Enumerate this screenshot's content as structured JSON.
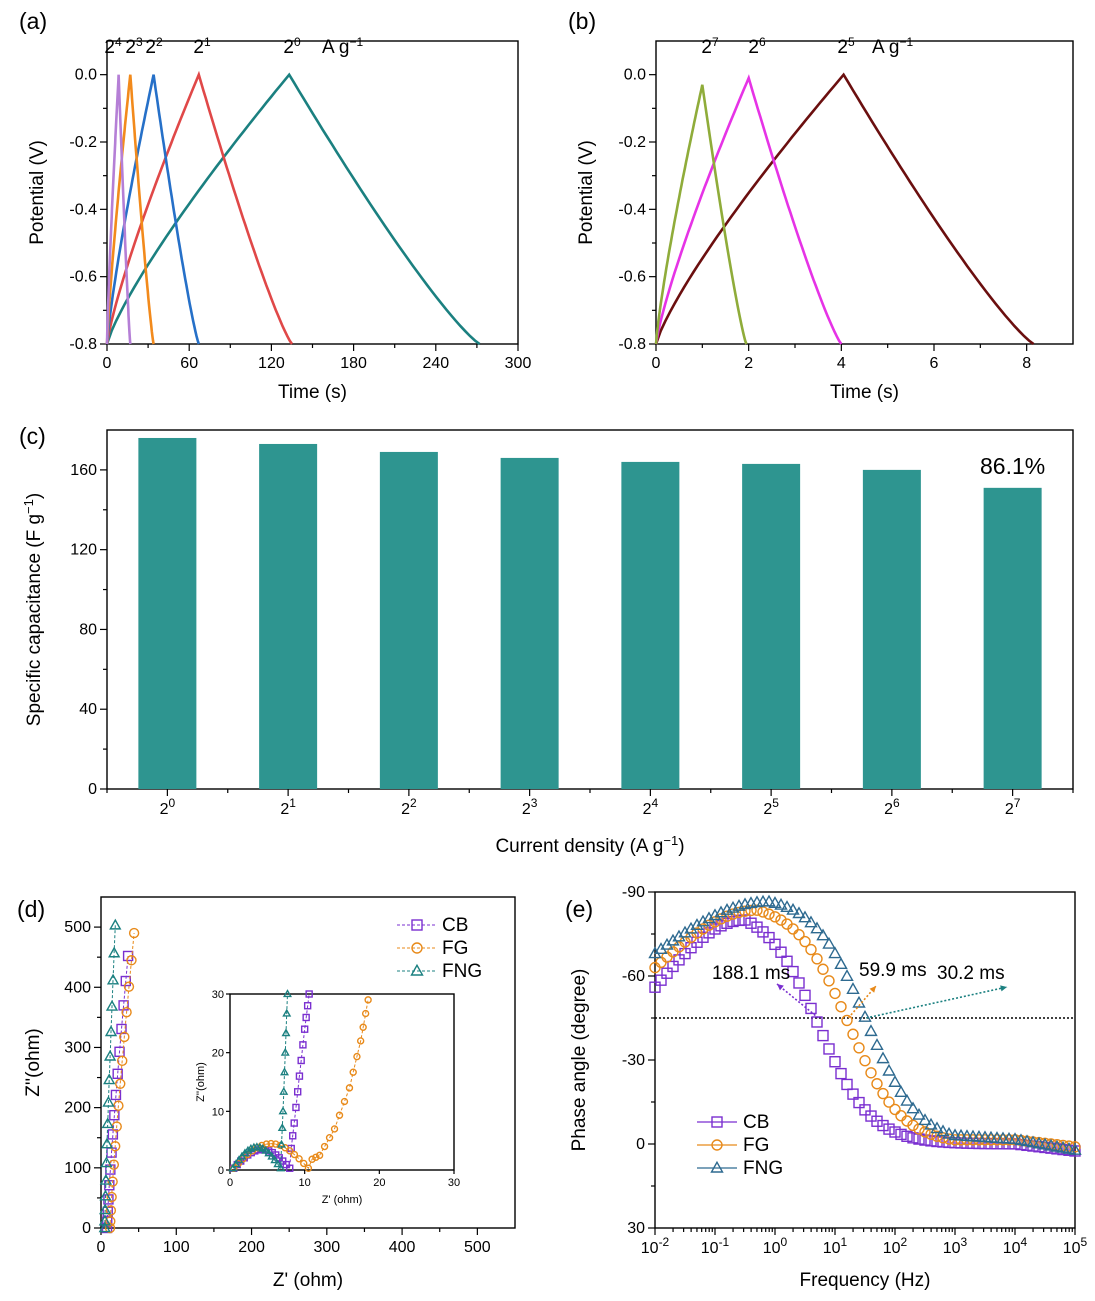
{
  "chart_data": [
    {
      "id": "a",
      "panel_label": "(a)",
      "type": "line",
      "xlabel": "Time (s)",
      "ylabel": "Potential (V)",
      "xlim": [
        0,
        300
      ],
      "ylim": [
        -0.8,
        0.1
      ],
      "xticks": [
        "0",
        "60",
        "120",
        "180",
        "240",
        "300"
      ],
      "yticks": [
        "0.0",
        "-0.2",
        "-0.4",
        "-0.6",
        "-0.8"
      ],
      "unit_label": "A g",
      "unit_sup": "−1",
      "series": [
        {
          "name": "2^0",
          "base": "2",
          "exp": "0",
          "color": "#1b8080",
          "peak_t": 133,
          "end_t": 272,
          "peak_v": 0.0
        },
        {
          "name": "2^1",
          "base": "2",
          "exp": "1",
          "color": "#e04848",
          "peak_t": 67,
          "end_t": 135,
          "peak_v": 0.0
        },
        {
          "name": "2^2",
          "base": "2",
          "exp": "2",
          "color": "#2670c8",
          "peak_t": 34,
          "end_t": 67,
          "peak_v": 0.0
        },
        {
          "name": "2^3",
          "base": "2",
          "exp": "3",
          "color": "#f28a1c",
          "peak_t": 17,
          "end_t": 34,
          "peak_v": 0.0
        },
        {
          "name": "2^4",
          "base": "2",
          "exp": "4",
          "color": "#b57fd6",
          "peak_t": 8.5,
          "end_t": 17,
          "peak_v": 0.0
        }
      ]
    },
    {
      "id": "b",
      "panel_label": "(b)",
      "type": "line",
      "xlabel": "Time (s)",
      "ylabel": "Potential (V)",
      "xlim": [
        0,
        9
      ],
      "ylim": [
        -0.8,
        0.1
      ],
      "xticks": [
        "0",
        "2",
        "4",
        "6",
        "8"
      ],
      "yticks": [
        "0.0",
        "-0.2",
        "-0.4",
        "-0.6",
        "-0.8"
      ],
      "unit_label": "A g",
      "unit_sup": "−1",
      "series": [
        {
          "name": "2^5",
          "base": "2",
          "exp": "5",
          "color": "#6b0f0f",
          "peak_t": 4.05,
          "end_t": 8.15,
          "peak_v": 0.0
        },
        {
          "name": "2^6",
          "base": "2",
          "exp": "6",
          "color": "#e633e6",
          "peak_t": 2.0,
          "end_t": 4.0,
          "peak_v": -0.01
        },
        {
          "name": "2^7",
          "base": "2",
          "exp": "7",
          "color": "#8fac3a",
          "peak_t": 1.0,
          "end_t": 1.95,
          "peak_v": -0.03
        }
      ]
    },
    {
      "id": "c",
      "panel_label": "(c)",
      "type": "bar",
      "xlabel": "Current density (A g",
      "xlabel_sup": "−1",
      "xlabel_end": ")",
      "ylabel": "Specific capacitance (F g",
      "ylabel_sup": "−1",
      "ylabel_end": ")",
      "ylim": [
        0,
        180
      ],
      "yticks": [
        "0",
        "40",
        "80",
        "120",
        "160"
      ],
      "bar_color": "#2e9590",
      "categories": [
        {
          "base": "2",
          "exp": "0"
        },
        {
          "base": "2",
          "exp": "1"
        },
        {
          "base": "2",
          "exp": "2"
        },
        {
          "base": "2",
          "exp": "3"
        },
        {
          "base": "2",
          "exp": "4"
        },
        {
          "base": "2",
          "exp": "5"
        },
        {
          "base": "2",
          "exp": "6"
        },
        {
          "base": "2",
          "exp": "7"
        }
      ],
      "values": [
        176,
        173,
        169,
        166,
        164,
        163,
        160,
        151
      ],
      "annotation": "86.1%",
      "annotation_color": "#e02020"
    },
    {
      "id": "d",
      "panel_label": "(d)",
      "type": "scatter",
      "xlabel": "Z' (ohm)",
      "ylabel": "Z''(ohm)",
      "xlim": [
        0,
        550
      ],
      "ylim": [
        0,
        550
      ],
      "xticks": [
        "0",
        "100",
        "200",
        "300",
        "400",
        "500"
      ],
      "yticks": [
        "0",
        "100",
        "200",
        "300",
        "400",
        "500"
      ],
      "legend": [
        {
          "name": "CB",
          "color": "#7a2fd0",
          "marker": "square"
        },
        {
          "name": "FG",
          "color": "#e88a1a",
          "marker": "circle"
        },
        {
          "name": "FNG",
          "color": "#1b8080",
          "marker": "triangle"
        }
      ],
      "inset": {
        "xlabel": "Z' (ohm)",
        "ylabel": "Z''(ohm)",
        "xlim": [
          0,
          30
        ],
        "ylim": [
          0,
          30
        ],
        "xticks": [
          "0",
          "10",
          "20",
          "30"
        ],
        "yticks": [
          "0",
          "10",
          "20",
          "30"
        ]
      }
    },
    {
      "id": "e",
      "panel_label": "(e)",
      "type": "scatter",
      "xlabel": "Frequency (Hz)",
      "ylabel": "Phase angle (degree)",
      "xlim_log10": [
        -2,
        5
      ],
      "ylim": [
        30,
        -90
      ],
      "xtick_exps": [
        "-2",
        "-1",
        "0",
        "1",
        "2",
        "3",
        "4",
        "5"
      ],
      "xtick_base": "10",
      "yticks": [
        "-90",
        "-60",
        "-30",
        "0",
        "30"
      ],
      "reference_line": -45,
      "legend": [
        {
          "name": "CB",
          "color": "#7a2fd0",
          "marker": "square"
        },
        {
          "name": "FG",
          "color": "#e88a1a",
          "marker": "circle"
        },
        {
          "name": "FNG",
          "color": "#2e6a90",
          "marker": "triangle"
        }
      ],
      "annotations": [
        {
          "text": "188.1 ms",
          "color": "#7a2fd0",
          "freq_hz": 5.3
        },
        {
          "text": "59.9 ms",
          "color": "#e88a1a",
          "freq_hz": 16.7
        },
        {
          "text": "30.2 ms",
          "color": "#1b8080",
          "freq_hz": 33.1
        }
      ]
    }
  ]
}
